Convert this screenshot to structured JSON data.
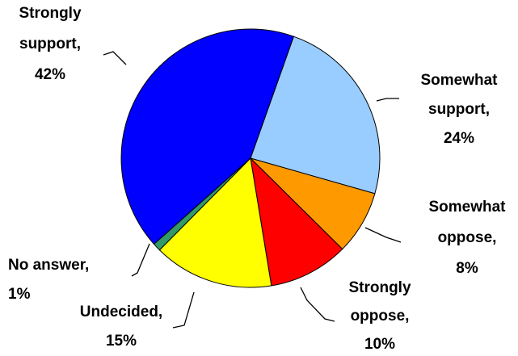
{
  "chart_data": {
    "type": "pie",
    "categories": [
      "Somewhat\nsupport,",
      "Somewhat\noppose,",
      "Strongly\noppose,",
      "Undecided,",
      "No answer,",
      "Strongly\nsupport,"
    ],
    "values": [
      24,
      8,
      10,
      15,
      1,
      42
    ],
    "value_labels": [
      "24%",
      "8%",
      "10%",
      "15%",
      "1%",
      "42%"
    ],
    "colors": [
      "#99ccff",
      "#ff9900",
      "#ff0000",
      "#ffff00",
      "#339966",
      "#0000ff"
    ]
  }
}
